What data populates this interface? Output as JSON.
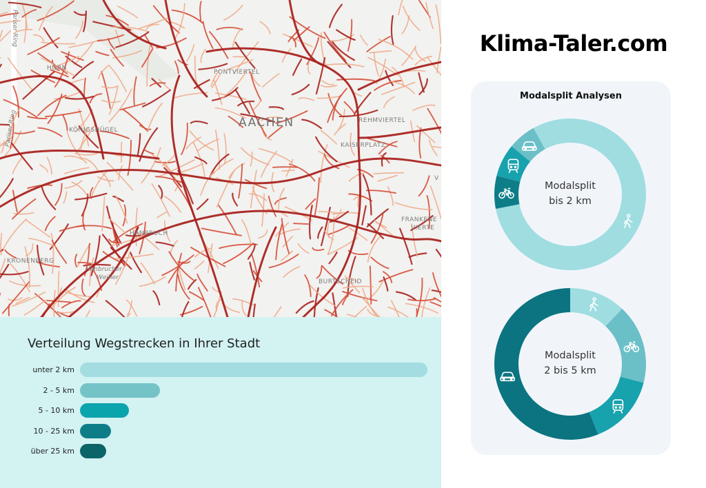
{
  "brand": "Klima-Taler.com",
  "map": {
    "labels": {
      "city": "AACHEN",
      "pontviertel": "PONTVIERTEL",
      "horn": "HÖRN",
      "koenigshuegel": "KÖNIGSHÜGEL",
      "kaiserplatz": "KAISERPLATZ",
      "rehmviertel": "REHMVIERTEL",
      "hanbruch": "HANBRUCH",
      "kronenberg": "KRONENBERG",
      "hanbrucher_weiher_1": "Hanbrucher",
      "hanbrucher_weiher_2": "Weiher",
      "burtscheid": "BURTSCHEID",
      "frankenberger_1": "FRANKENE",
      "frankenberger_2": "VIERTE",
      "parisier_ring": "Pariser Ring",
      "ring2": "Pariser Ring",
      "v_label": "V"
    }
  },
  "modal": {
    "title": "Modalsplit Analysen",
    "donut1": {
      "line1": "Modalsplit",
      "line2": "bis 2 km"
    },
    "donut2": {
      "line1": "Modalsplit",
      "line2": "2 bis 5 km"
    }
  },
  "colors": {
    "walk": "#9fdde1",
    "car": "#6bbfc7",
    "train": "#17a2ad",
    "bike": "#0d7d88",
    "car_dark": "#0b7480",
    "bar_track_bg": "#d3f2f2",
    "road_dark": "#a9231f",
    "road_mid": "#d54f38",
    "road_light": "#eeaa88"
  },
  "chart_data": [
    {
      "type": "bar",
      "orientation": "horizontal",
      "title": "Verteilung Wegstrecken in Ihrer Stadt",
      "categories": [
        "unter 2 km",
        "2 - 5 km",
        "5 - 10 km",
        "10 - 25 km",
        "über 25 km"
      ],
      "values": [
        100,
        23,
        14,
        9,
        7.5
      ],
      "bar_colors": [
        "#a3dde1",
        "#74c3c7",
        "#0aa4ad",
        "#0d7e88",
        "#0b6467"
      ],
      "xlim": [
        0,
        100
      ],
      "grid": false
    },
    {
      "type": "pie",
      "subtype": "donut",
      "center_text": [
        "Modalsplit",
        "bis 2 km"
      ],
      "slices": [
        {
          "icon": "walk-icon",
          "value": 80,
          "color": "#9fdde1"
        },
        {
          "icon": "bike-icon",
          "value": 7,
          "color": "#0d7d88"
        },
        {
          "icon": "train-icon",
          "value": 7,
          "color": "#17a2ad"
        },
        {
          "icon": "car-icon",
          "value": 6,
          "color": "#6bbfc7"
        }
      ]
    },
    {
      "type": "pie",
      "subtype": "donut",
      "center_text": [
        "Modalsplit",
        "2 bis 5 km"
      ],
      "slices": [
        {
          "icon": "walk-icon",
          "value": 12,
          "color": "#9fdde1"
        },
        {
          "icon": "bike-icon",
          "value": 17,
          "color": "#6bbfc7"
        },
        {
          "icon": "train-icon",
          "value": 15,
          "color": "#17a2ad"
        },
        {
          "icon": "car-icon",
          "value": 56,
          "color": "#0b7480"
        }
      ]
    }
  ]
}
